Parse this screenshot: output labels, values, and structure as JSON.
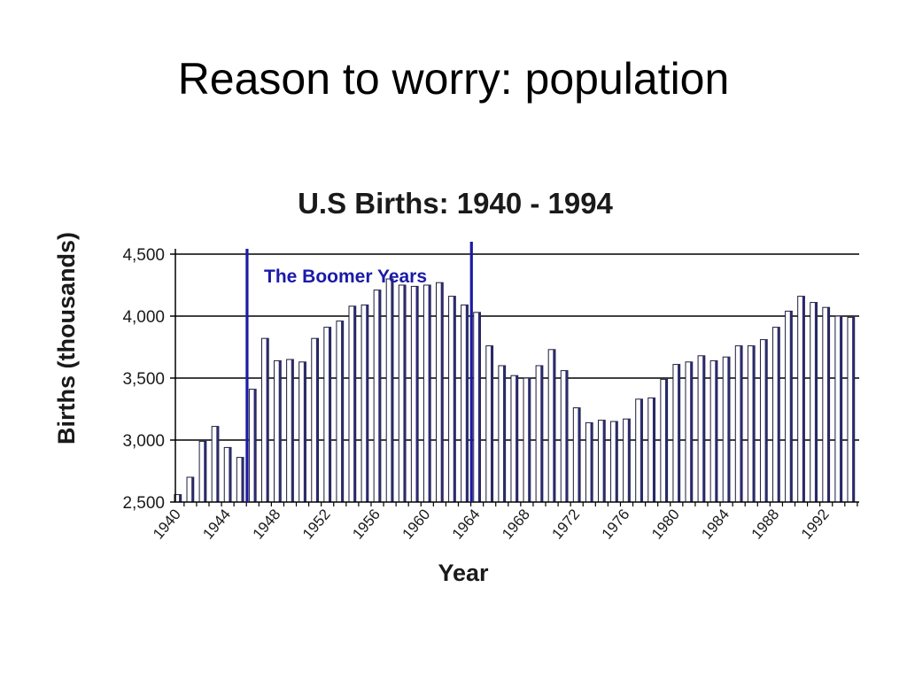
{
  "slide": {
    "title": "Reason to worry: population"
  },
  "chart_data": {
    "type": "bar",
    "title": "U.S Births: 1940 - 1994",
    "xlabel": "Year",
    "ylabel": "Births (thousands)",
    "ylim": [
      2500,
      4500
    ],
    "yticks": [
      2500,
      3000,
      3500,
      4000,
      4500
    ],
    "ytick_labels": [
      "2,500",
      "3,000",
      "3,500",
      "4,000",
      "4,500"
    ],
    "xtick_labels": [
      "1940",
      "1944",
      "1948",
      "1952",
      "1956",
      "1960",
      "1964",
      "1968",
      "1972",
      "1976",
      "1980",
      "1984",
      "1988",
      "1992"
    ],
    "grid": "horizontal",
    "annotation": {
      "label": "The Boomer Years",
      "start_year": 1946,
      "end_year": 1964,
      "color": "#1a1aa8"
    },
    "colors": {
      "bar_fill": "#ffffff",
      "bar_shade": "#2b2b6e",
      "boomer_line": "#1a1aa8",
      "axis": "#000000"
    },
    "categories": [
      1940,
      1941,
      1942,
      1943,
      1944,
      1945,
      1946,
      1947,
      1948,
      1949,
      1950,
      1951,
      1952,
      1953,
      1954,
      1955,
      1956,
      1957,
      1958,
      1959,
      1960,
      1961,
      1962,
      1963,
      1964,
      1965,
      1966,
      1967,
      1968,
      1969,
      1970,
      1971,
      1972,
      1973,
      1974,
      1975,
      1976,
      1977,
      1978,
      1979,
      1980,
      1981,
      1982,
      1983,
      1984,
      1985,
      1986,
      1987,
      1988,
      1989,
      1990,
      1991,
      1992,
      1993,
      1994
    ],
    "values": [
      2560,
      2700,
      2990,
      3110,
      2940,
      2860,
      3410,
      3820,
      3640,
      3650,
      3630,
      3820,
      3910,
      3960,
      4080,
      4090,
      4210,
      4300,
      4250,
      4240,
      4250,
      4270,
      4160,
      4090,
      4030,
      3760,
      3600,
      3520,
      3500,
      3600,
      3730,
      3560,
      3260,
      3140,
      3160,
      3150,
      3170,
      3330,
      3340,
      3490,
      3610,
      3630,
      3680,
      3640,
      3670,
      3760,
      3760,
      3810,
      3910,
      4040,
      4160,
      4110,
      4070,
      4000,
      3990
    ]
  }
}
